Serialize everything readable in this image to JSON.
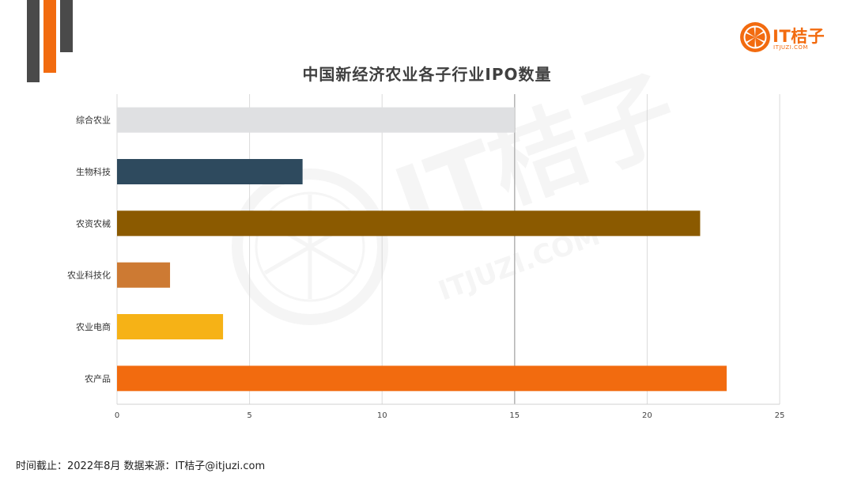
{
  "header": {
    "logo_name": "IT桔子",
    "logo_domain": "ITJUZI.COM",
    "brand_color": "#f26b0f",
    "logo_icon": "orange-slice-icon"
  },
  "watermark": {
    "text": "IT桔子",
    "domain": "ITJUZI.COM",
    "icon": "orange-slice-icon"
  },
  "chart_data": {
    "type": "bar",
    "orientation": "horizontal",
    "title": "中国新经济农业各子行业IPO数量",
    "categories": [
      "综合农业",
      "生物科技",
      "农资农械",
      "农业科技化",
      "农业电商",
      "农产品"
    ],
    "values": [
      15,
      7,
      22,
      2,
      4,
      23
    ],
    "colors": [
      "#dfe0e2",
      "#2e4a5e",
      "#8b5a00",
      "#cd7a33",
      "#f6b216",
      "#f26b0f"
    ],
    "xlim": [
      0,
      25
    ],
    "xticks": [
      0,
      5,
      10,
      15,
      20,
      25
    ],
    "grid": true,
    "legend": "none",
    "xlabel": "",
    "ylabel": ""
  },
  "footer": {
    "source": "时间截止：2022年8月  数据来源：IT桔子@itjuzi.com"
  }
}
